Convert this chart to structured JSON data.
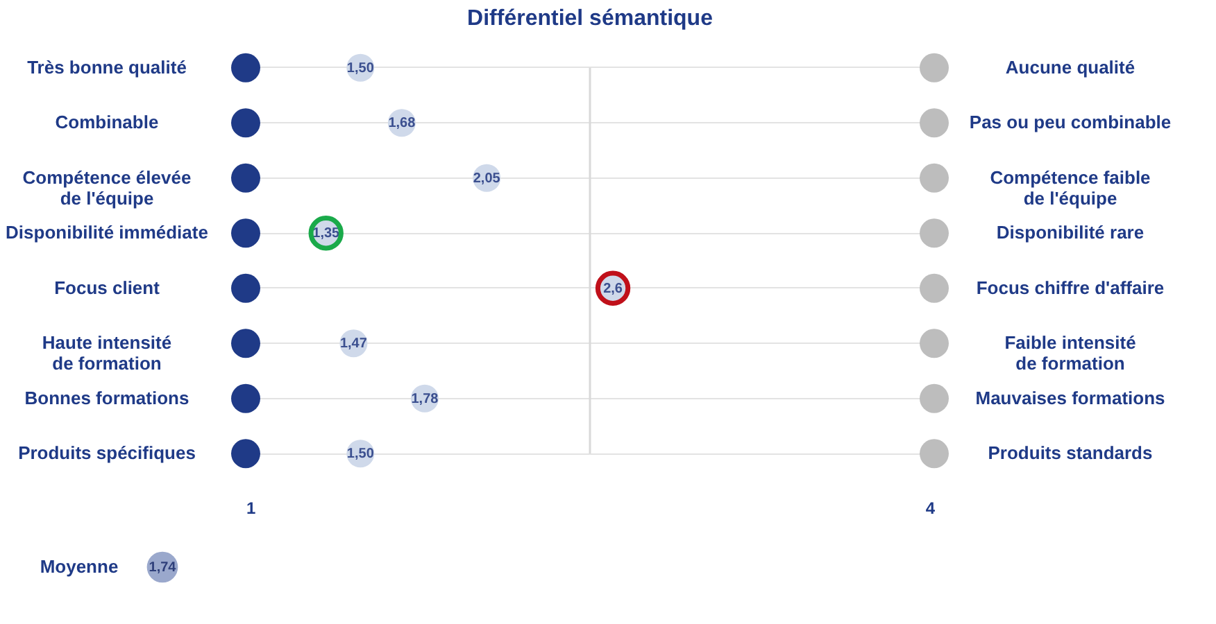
{
  "chart_data": {
    "type": "scatter",
    "orientation": "horizontal",
    "title": "Différentiel sémantique",
    "categories": [
      "Très bonne qualité",
      "Combinable",
      "Compétence élevée\nde l'équipe",
      "Disponibilité immédiate",
      "Focus client",
      "Haute intensité\nde formation",
      "Bonnes formations",
      "Produits spécifiques"
    ],
    "y2_categories": [
      "Aucune qualité",
      "Pas ou peu combinable",
      "Compétence faible\nde l'équipe",
      "Disponibilité rare",
      "Focus chiffre d'affaire",
      "Faible intensité\nde formation",
      "Mauvaises formations",
      "Produits standards"
    ],
    "series": [
      {
        "color": "#1f3a87",
        "values": [
          1,
          1,
          1,
          1,
          1,
          1,
          1,
          1
        ]
      },
      {
        "color": "#bdbdbd",
        "values": [
          4,
          4,
          4,
          4,
          4,
          4,
          4,
          4
        ]
      },
      {
        "color": "#cfd9ea",
        "values": [
          1.5,
          1.68,
          2.05,
          1.35,
          2.6,
          1.47,
          1.78,
          1.5
        ],
        "value_labels": [
          "1,50",
          "1,68",
          "2,05",
          "1,35",
          "2,6",
          "1,47",
          "1,78",
          "1,50"
        ]
      },
      {
        "color": "#1aaa4a",
        "values": [
          null,
          null,
          null,
          1.35,
          null,
          null,
          null,
          null
        ]
      },
      {
        "color": "#c0101a",
        "values": [
          null,
          null,
          null,
          null,
          2.6,
          null,
          null,
          null
        ]
      }
    ],
    "xlim": [
      1,
      4
    ],
    "xticks": [
      1,
      4
    ],
    "grid": "y",
    "marker": "circle",
    "ref_lines": [
      {
        "axis": "x",
        "value": 2.5,
        "color": "#d9d9d9"
      }
    ],
    "annotations": [
      "Moyenne",
      "1,74"
    ]
  }
}
